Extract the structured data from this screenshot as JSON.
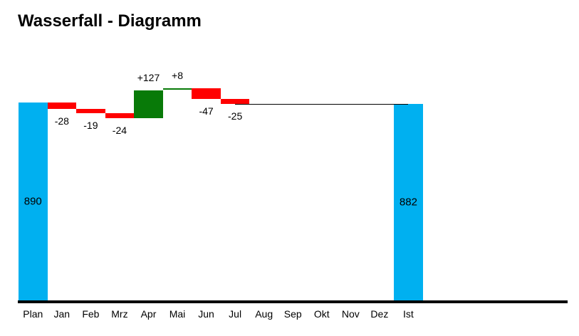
{
  "title": "Wasserfall - Diagramm",
  "chart_data": {
    "type": "waterfall",
    "title": "Wasserfall - Diagramm",
    "categories": [
      "Plan",
      "Jan",
      "Feb",
      "Mrz",
      "Apr",
      "Mai",
      "Jun",
      "Jul",
      "Aug",
      "Sep",
      "Okt",
      "Nov",
      "Dez",
      "Ist"
    ],
    "bars": [
      {
        "category": "Plan",
        "kind": "total",
        "value": 890,
        "label": "890"
      },
      {
        "category": "Jan",
        "kind": "delta",
        "value": -28,
        "label": "-28"
      },
      {
        "category": "Feb",
        "kind": "delta",
        "value": -19,
        "label": "-19"
      },
      {
        "category": "Mrz",
        "kind": "delta",
        "value": -24,
        "label": "-24"
      },
      {
        "category": "Apr",
        "kind": "delta",
        "value": 127,
        "label": "+127"
      },
      {
        "category": "Mai",
        "kind": "delta",
        "value": 8,
        "label": "+8"
      },
      {
        "category": "Jun",
        "kind": "delta",
        "value": -47,
        "label": "-47"
      },
      {
        "category": "Jul",
        "kind": "delta",
        "value": -25,
        "label": "-25"
      },
      {
        "category": "Ist",
        "kind": "total",
        "value": 882,
        "label": "882"
      }
    ],
    "empty_categories": [
      "Aug",
      "Sep",
      "Okt",
      "Nov",
      "Dez"
    ],
    "connector": {
      "from_category": "Jul",
      "to_category": "Ist",
      "value": 882
    },
    "colors": {
      "total": "#00B0F0",
      "increase": "#087A08",
      "decrease": "#FF0000",
      "axis": "#000000",
      "label": "#000000"
    },
    "baseline_value": 0,
    "legend": "none",
    "grid": false
  }
}
